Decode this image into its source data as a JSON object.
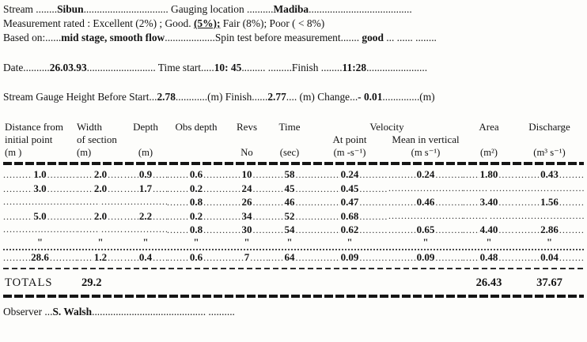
{
  "doc": {
    "line_stream": {
      "s1": "Stream ........",
      "s2": "Sibun",
      "s3": "................................   Gauging location   ..........",
      "s4": "Madiba",
      "s5": "......................................."
    },
    "line_rating": {
      "s1": "Measurement rated :  Excellent  (2%) ;   Good. ",
      "s2": "(5%);",
      "s3": "   Fair  (8%);    Poor ( < 8%)"
    },
    "line_basis": {
      "s1": "Based on:......",
      "s2": "mid stage, smooth flow",
      "s3": "...................Spin test before measurement....... ",
      "s4": "good",
      "s5": "  ... ...... ........"
    },
    "line_date": {
      "s1": "Date..........",
      "s2": "26.03.93",
      "s3": "..........................   Time start.....",
      "s4": "10: 45",
      "s5": "......... .........Finish ........",
      "s6": "11:28",
      "s7": "......................."
    },
    "line_gauge": {
      "s1": "Stream Gauge Height  Before Start...",
      "s2": "2.78",
      "s3": "............(m)    Finish......",
      "s4": "2.77",
      "s5": ".... (m)     Change...",
      "s6": "- 0.01",
      "s7": "..............(m)"
    },
    "observer": {
      "s1": "Observer ...",
      "s2": "S. Walsh",
      "s3": "........................................... .........."
    }
  },
  "table": {
    "header": {
      "distance": "Distance from",
      "distance2": "initial point",
      "distance_u": "(m )",
      "width": "Width",
      "width2": "of section",
      "width_u": "(m)",
      "depth": "Depth",
      "depth_u": "(m)",
      "obs": "Obs depth",
      "revs": "Revs",
      "revs_u": "No",
      "time": "Time",
      "time_u": "(sec)",
      "velocity": "Velocity",
      "at_point": "At point",
      "at_point_u": "(m -s⁻¹)",
      "mean": "Mean in vertical",
      "mean_u": "(m s⁻¹)",
      "area": "Area",
      "area_u": "(m²)",
      "discharge": "Discharge",
      "discharge_u": "(m³ s⁻¹)"
    },
    "leader_dots": "........................................",
    "ditto_char": "\"",
    "rows": [
      [
        "1.0",
        "2.0",
        "0.9",
        "0.6",
        "10",
        "58",
        "0.24",
        "0.24",
        "1.80",
        "0.43"
      ],
      [
        "3.0",
        "2.0",
        "1.7",
        "0.2",
        "24",
        "45",
        "0.45",
        "",
        "",
        ""
      ],
      [
        "",
        "",
        "",
        "0.8",
        "26",
        "46",
        "0.47",
        "0.46",
        "3.40",
        "1.56"
      ],
      [
        "5.0",
        "2.0",
        "2.2",
        "0.2",
        "34",
        "52",
        "0.68",
        "",
        "",
        ""
      ],
      [
        "",
        "",
        "",
        "0.8",
        "30",
        "54",
        "0.62",
        "0.65",
        "4.40",
        "2.86"
      ],
      [
        "\"",
        "\"",
        "\"",
        "\"",
        "\"",
        "\"",
        "\"",
        "\"",
        "\"",
        "\""
      ],
      [
        "28.6",
        "1.2",
        "0.4",
        "0.6",
        "7",
        "64",
        "0.09",
        "0.09",
        "0.48",
        "0.04"
      ]
    ],
    "totals": {
      "label": "TOTALS",
      "width_total": "29.2",
      "area_total": "26.43",
      "discharge_total": "37.67"
    }
  }
}
